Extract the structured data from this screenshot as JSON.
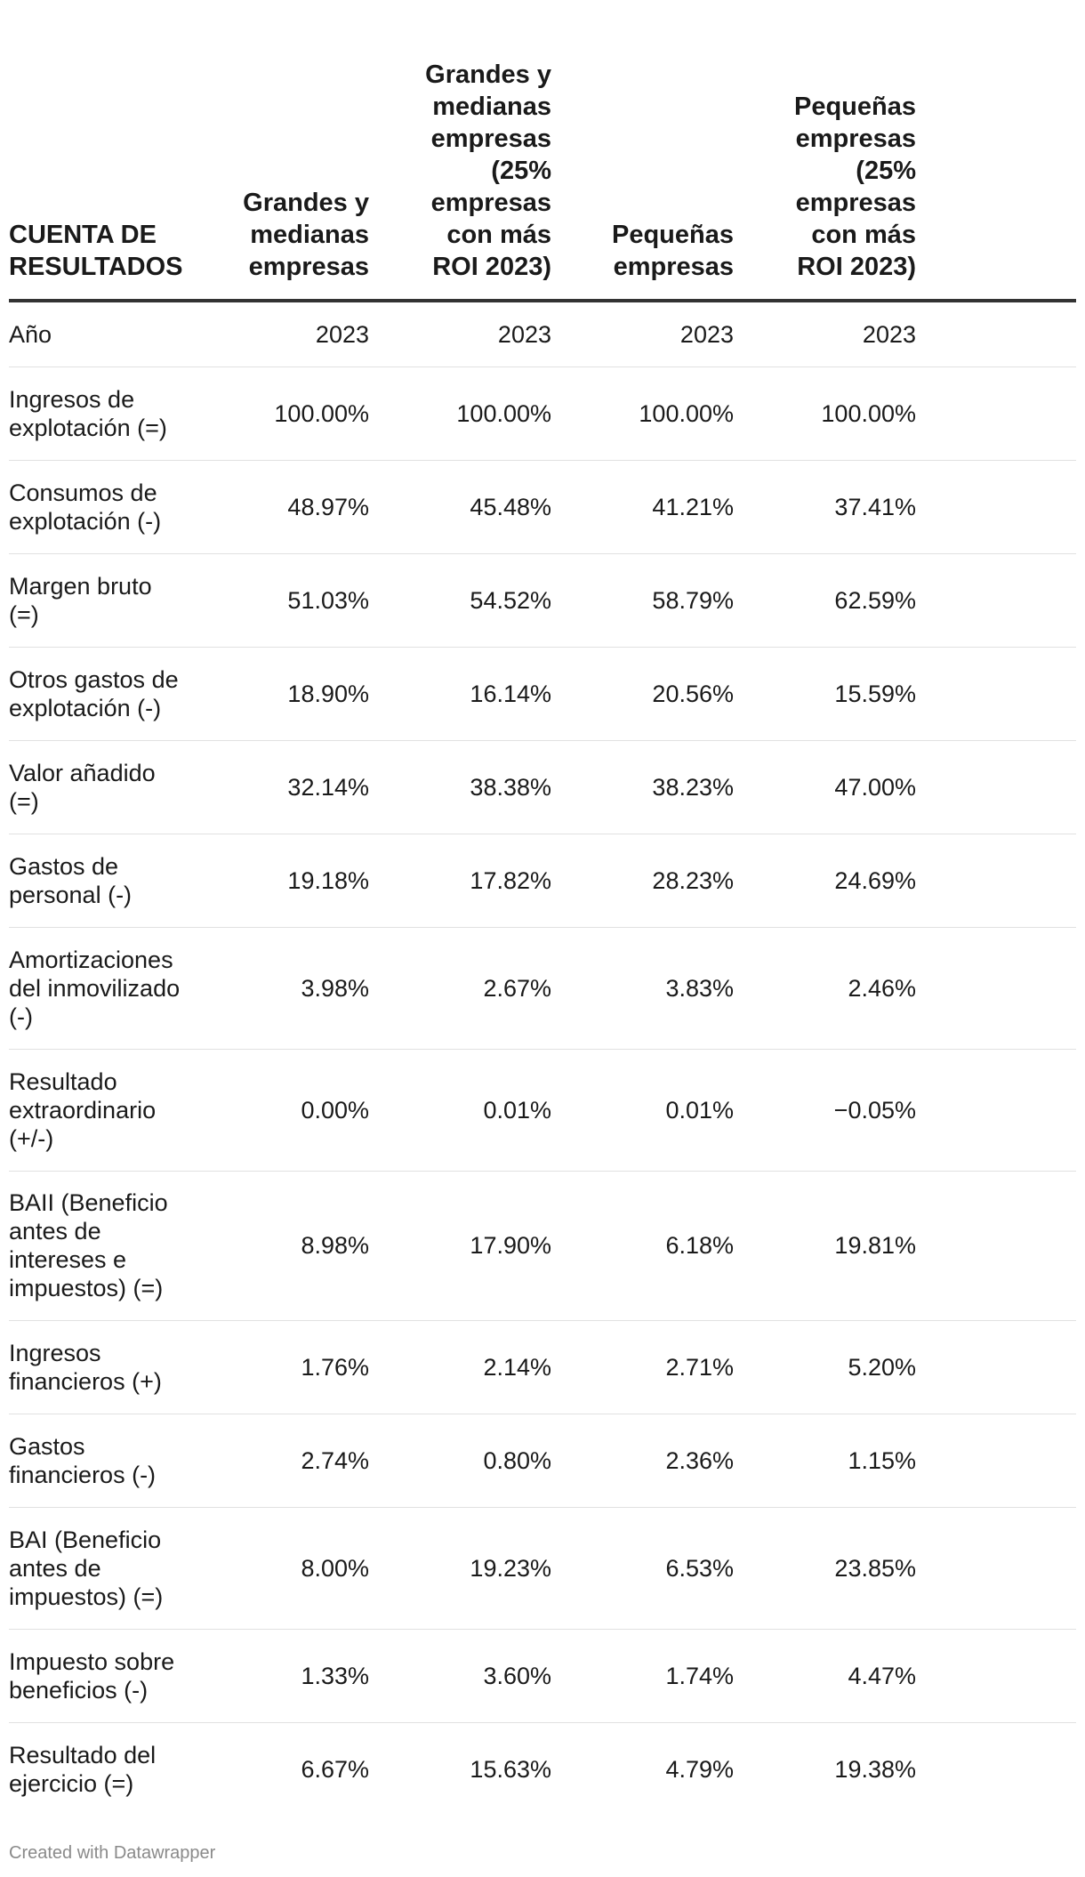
{
  "table": {
    "headers": [
      "CUENTA DE RESULTADOS",
      "Grandes y medianas empresas",
      "Grandes y medianas empresas (25% empresas con más ROI 2023)",
      "Pequeñas empresas",
      "Pequeñas empresas (25% empresas con más ROI 2023)"
    ],
    "rows": [
      {
        "label": "Año",
        "values": [
          "2023",
          "2023",
          "2023",
          "2023"
        ]
      },
      {
        "label": "Ingresos de explotación (=)",
        "values": [
          "100.00%",
          "100.00%",
          "100.00%",
          "100.00%"
        ]
      },
      {
        "label": "Consumos de explotación (-)",
        "values": [
          "48.97%",
          "45.48%",
          "41.21%",
          "37.41%"
        ]
      },
      {
        "label": "Margen bruto (=)",
        "values": [
          "51.03%",
          "54.52%",
          "58.79%",
          "62.59%"
        ]
      },
      {
        "label": "Otros gastos de explotación (-)",
        "values": [
          "18.90%",
          "16.14%",
          "20.56%",
          "15.59%"
        ]
      },
      {
        "label": "Valor añadido (=)",
        "values": [
          "32.14%",
          "38.38%",
          "38.23%",
          "47.00%"
        ]
      },
      {
        "label": "Gastos de personal (-)",
        "values": [
          "19.18%",
          "17.82%",
          "28.23%",
          "24.69%"
        ]
      },
      {
        "label": "Amortizaciones del inmovilizado (-)",
        "values": [
          "3.98%",
          "2.67%",
          "3.83%",
          "2.46%"
        ]
      },
      {
        "label": "Resultado extraordinario (+/-)",
        "values": [
          "0.00%",
          "0.01%",
          "0.01%",
          "−0.05%"
        ]
      },
      {
        "label": "BAII (Beneficio antes de intereses e impuestos) (=)",
        "values": [
          "8.98%",
          "17.90%",
          "6.18%",
          "19.81%"
        ]
      },
      {
        "label": "Ingresos financieros (+)",
        "values": [
          "1.76%",
          "2.14%",
          "2.71%",
          "5.20%"
        ]
      },
      {
        "label": "Gastos financieros (-)",
        "values": [
          "2.74%",
          "0.80%",
          "2.36%",
          "1.15%"
        ]
      },
      {
        "label": "BAI (Beneficio antes de impuestos) (=)",
        "values": [
          "8.00%",
          "19.23%",
          "6.53%",
          "23.85%"
        ]
      },
      {
        "label": "Impuesto sobre beneficios (-)",
        "values": [
          "1.33%",
          "3.60%",
          "1.74%",
          "4.47%"
        ]
      },
      {
        "label": "Resultado del ejercicio (=)",
        "values": [
          "6.67%",
          "15.63%",
          "4.79%",
          "19.38%"
        ]
      }
    ]
  },
  "footer": {
    "credit": "Created with Datawrapper"
  }
}
